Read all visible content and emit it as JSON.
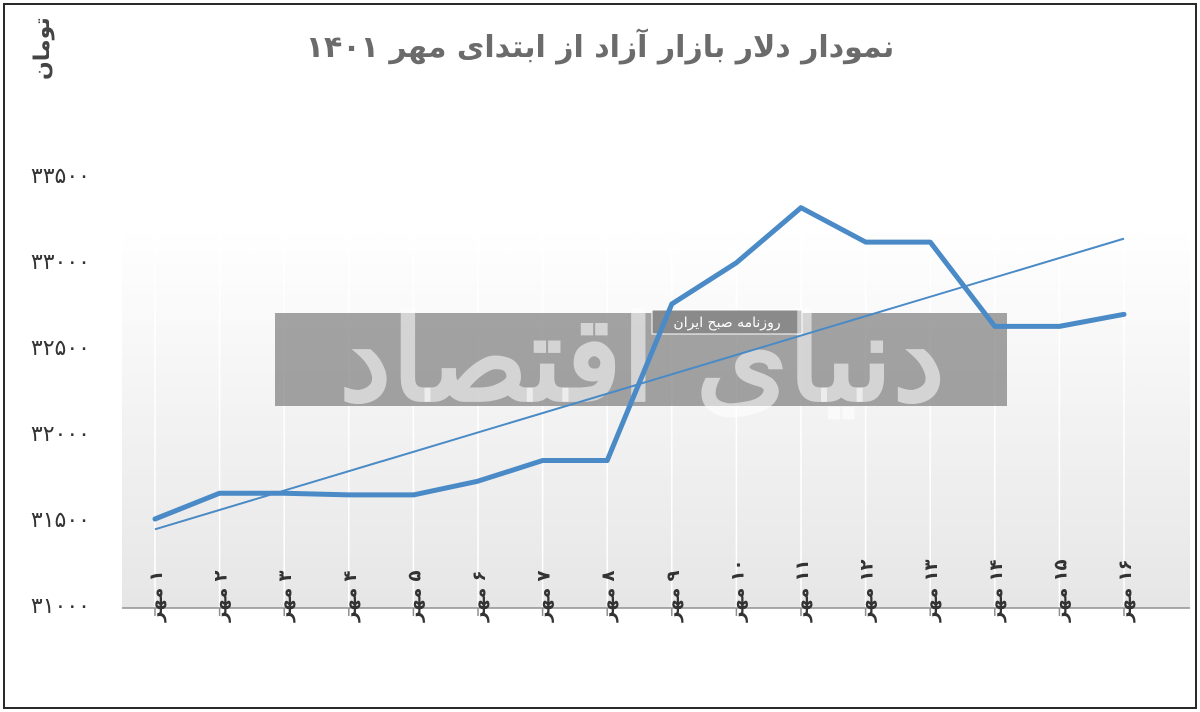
{
  "chart_data": {
    "type": "line",
    "title": "نمودار دلار بازار آزاد از ابتدای مهر ۱۴۰۱",
    "ylabel": "تومان",
    "xlabel": "",
    "ylim": [
      31000,
      33500
    ],
    "yticks": [
      {
        "value": 31000,
        "label": "۳۱۰۰۰"
      },
      {
        "value": 31500,
        "label": "۳۱۵۰۰"
      },
      {
        "value": 32000,
        "label": "۳۲۰۰۰"
      },
      {
        "value": 32500,
        "label": "۳۲۵۰۰"
      },
      {
        "value": 33000,
        "label": "۳۳۰۰۰"
      },
      {
        "value": 33500,
        "label": "۳۳۵۰۰"
      }
    ],
    "categories": [
      "۱ مهر",
      "۲ مهر",
      "۳ مهر",
      "۴ مهر",
      "۵ مهر",
      "۶ مهر",
      "۷ مهر",
      "۸ مهر",
      "۹ مهر",
      "۱۰ مهر",
      "۱۱ مهر",
      "۱۲ مهر",
      "۱۳ مهر",
      "۱۴ مهر",
      "۱۵ مهر",
      "۱۶ مهر"
    ],
    "series": [
      {
        "values": [
          31500,
          31650,
          31650,
          31640,
          31640,
          31720,
          31840,
          31840,
          32750,
          32990,
          33310,
          33110,
          33110,
          32620,
          32620,
          32690
        ],
        "color": "#4a8ac6"
      }
    ],
    "trendline": {
      "start": 31440,
      "end": 33130,
      "color": "#4a8ac6"
    },
    "grid": {
      "vertical": true,
      "horizontal": false
    },
    "legend": "none"
  },
  "watermark": {
    "main_text": "دنیای اقتصاد",
    "sub_text": "روزنامه صبح ایران"
  }
}
